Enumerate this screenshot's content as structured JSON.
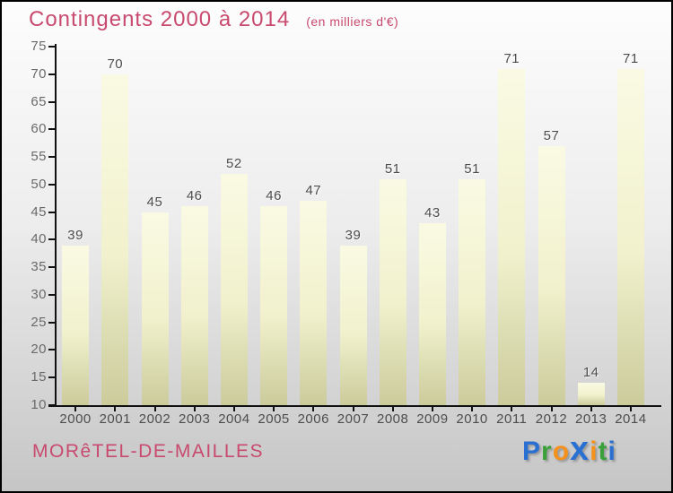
{
  "header": {
    "title": "Contingents 2000 à 2014",
    "subtitle": "(en milliers d'€)"
  },
  "chart_data": {
    "type": "bar",
    "title": "Contingents 2000 à 2014",
    "subtitle": "(en milliers d'€)",
    "categories": [
      "2000",
      "2001",
      "2002",
      "2003",
      "2004",
      "2005",
      "2006",
      "2007",
      "2008",
      "2009",
      "2010",
      "2011",
      "2012",
      "2013",
      "2014"
    ],
    "values": [
      39,
      70,
      45,
      46,
      52,
      46,
      47,
      39,
      51,
      43,
      51,
      71,
      57,
      14,
      71
    ],
    "xlabel": "",
    "ylabel": "",
    "ylim": [
      10,
      75
    ],
    "ytick_step": 5,
    "grid": false,
    "legend": false,
    "value_labels_shown": true
  },
  "footer": {
    "location": "MORêTEL-DE-MAILLES",
    "logo": {
      "text": "Proxiti",
      "letters": [
        {
          "ch": "P",
          "color": "#2a6fd2",
          "big": false
        },
        {
          "ch": "r",
          "color": "#3aa13a",
          "big": false
        },
        {
          "ch": "o",
          "color": "#f5921e",
          "big": false
        },
        {
          "ch": "x",
          "color": "#2a6fd2",
          "big": true
        },
        {
          "ch": "i",
          "color": "#f5921e",
          "big": false
        },
        {
          "ch": "t",
          "color": "#3aa13a",
          "big": false
        },
        {
          "ch": "i",
          "color": "#2a6fd2",
          "big": false
        }
      ]
    }
  },
  "colors": {
    "accent_pink": "#c84a6e",
    "background_top": "#fdfdfd",
    "background_bottom": "#c5c5c5",
    "axis": "#111111",
    "tick_label": "#6a6a6a",
    "value_label": "#4d4d4d",
    "year_label": "#4d4d4d",
    "bar_top": "#fafae4",
    "bar_mid": "#f1f1cd",
    "bar_bottom": "#cbcb9c",
    "logo_blue": "#2a6fd2",
    "logo_green": "#3aa13a",
    "logo_orange": "#f5921e"
  }
}
